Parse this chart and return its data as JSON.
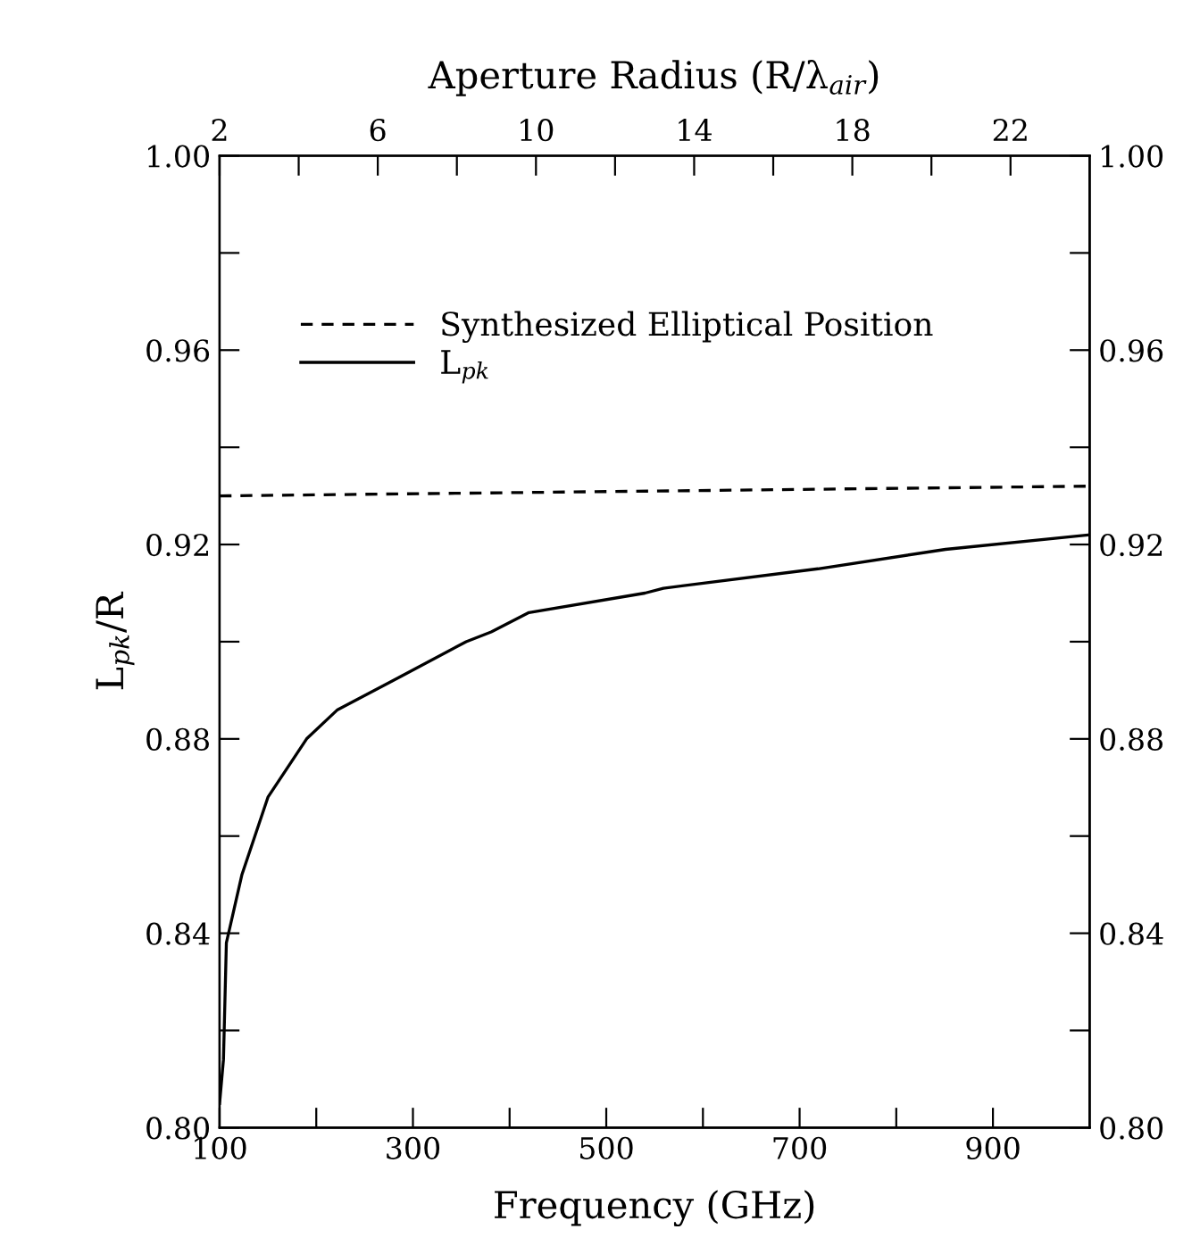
{
  "chart_data": {
    "type": "line",
    "xlabel": "Frequency (GHz)",
    "ylabel": "L$_{pk}$/R",
    "x2label": "Aperture Radius (R/λ$_{air}$)",
    "xlim": [
      100,
      1000
    ],
    "xticks": [
      100,
      {
        "value": 200,
        "label": null
      },
      300,
      {
        "value": 400,
        "label": null
      },
      500,
      {
        "value": 600,
        "label": null
      },
      700,
      {
        "value": 800,
        "label": null
      },
      900
    ],
    "x2lim": [
      2,
      24
    ],
    "x2ticks": [
      2,
      {
        "value": 4,
        "label": null
      },
      6,
      {
        "value": 8,
        "label": null
      },
      10,
      {
        "value": 12,
        "label": null
      },
      14,
      {
        "value": 16,
        "label": null
      },
      18,
      {
        "value": 20,
        "label": null
      },
      22
    ],
    "ylim": [
      0.8,
      1.0
    ],
    "yticks": [
      {
        "value": 0.8,
        "label": "0.80"
      },
      {
        "value": 0.82,
        "label": null
      },
      0.84,
      {
        "value": 0.86,
        "label": null
      },
      0.88,
      {
        "value": 0.9,
        "label": null
      },
      0.92,
      {
        "value": 0.94,
        "label": null
      },
      0.96,
      {
        "value": 0.98,
        "label": null
      },
      {
        "value": 1.0,
        "label": "1.00"
      }
    ],
    "y2lim": [
      0.8,
      1.0
    ],
    "y2ticks": [
      {
        "value": 0.8,
        "label": "0.80"
      },
      {
        "value": 0.82,
        "label": null
      },
      0.84,
      {
        "value": 0.86,
        "label": null
      },
      0.88,
      {
        "value": 0.9,
        "label": null
      },
      0.92,
      {
        "value": 0.94,
        "label": null
      },
      0.96,
      {
        "value": 0.98,
        "label": null
      },
      {
        "value": 1.0,
        "label": "1.00"
      }
    ],
    "grid": false,
    "legend": "top left",
    "series": [
      {
        "name": "Synthesized Elliptical Position",
        "color": "#000000",
        "line_style": "dashed",
        "x": [
          100,
          1000
        ],
        "values": [
          0.93,
          0.932
        ]
      },
      {
        "name": "L$_{pk}$",
        "color": "#000000",
        "line_style": "solid",
        "x": [
          100,
          104,
          107,
          123,
          150,
          190,
          222,
          289,
          355,
          381,
          420,
          540,
          559,
          719,
          851,
          1000
        ],
        "values": [
          0.805,
          0.814,
          0.838,
          0.852,
          0.868,
          0.88,
          0.886,
          0.893,
          0.9,
          0.902,
          0.906,
          0.91,
          0.911,
          0.915,
          0.919,
          0.922
        ]
      }
    ]
  }
}
